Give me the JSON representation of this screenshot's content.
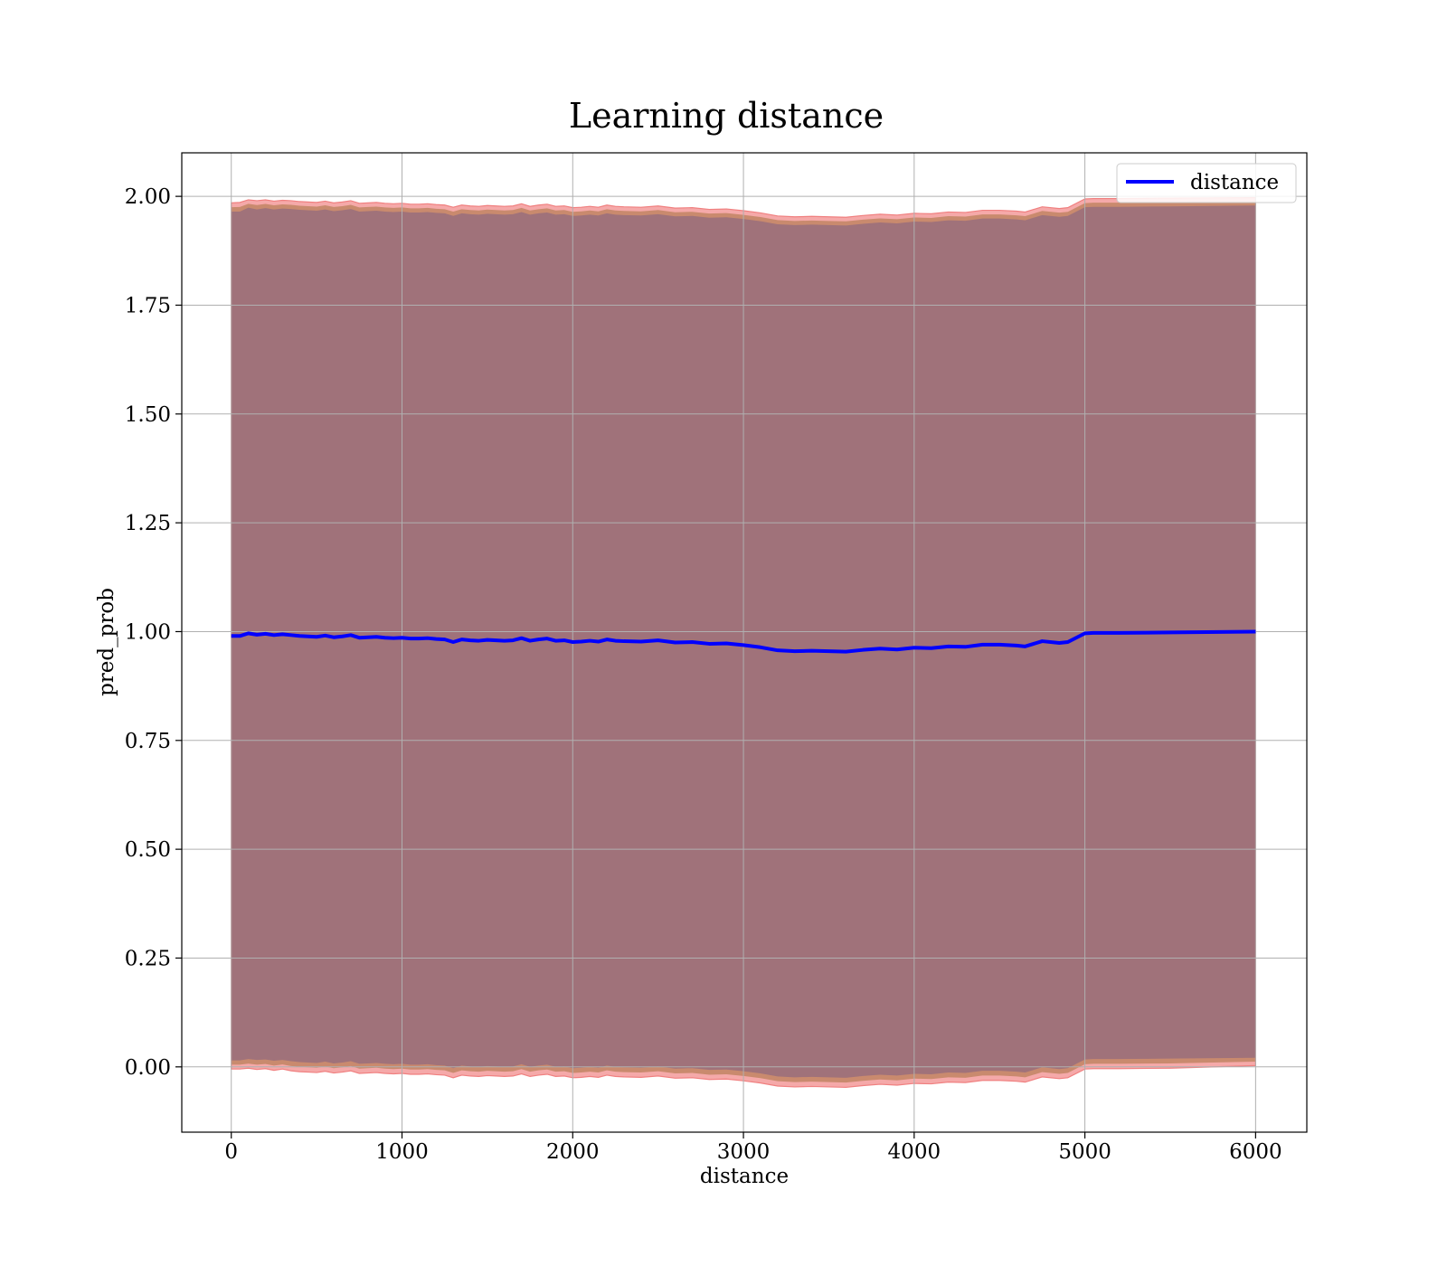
{
  "chart_data": {
    "type": "line",
    "title": "Learning distance",
    "xlabel": "distance",
    "ylabel": "pred_prob",
    "xlim": [
      -290,
      6300
    ],
    "ylim": [
      -0.15,
      2.1
    ],
    "xticks": [
      0,
      1000,
      2000,
      3000,
      4000,
      5000,
      6000
    ],
    "xtick_labels": [
      "0",
      "1000",
      "2000",
      "3000",
      "4000",
      "5000",
      "6000"
    ],
    "yticks": [
      0.0,
      0.25,
      0.5,
      0.75,
      1.0,
      1.25,
      1.5,
      1.75,
      2.0
    ],
    "ytick_labels": [
      "0.00",
      "0.25",
      "0.50",
      "0.75",
      "1.00",
      "1.25",
      "1.50",
      "1.75",
      "2.00"
    ],
    "grid": true,
    "legend": {
      "position": "top-right",
      "entries": [
        "distance"
      ]
    },
    "colors": {
      "line": "#0000ff",
      "band_outer": "#f4a0a0",
      "band_mid": "#c98a6e",
      "band_inner": "#a0727a"
    },
    "series": [
      {
        "name": "distance",
        "x": [
          0,
          50,
          100,
          150,
          200,
          250,
          300,
          350,
          400,
          450,
          500,
          550,
          600,
          650,
          700,
          750,
          800,
          850,
          900,
          950,
          1000,
          1050,
          1100,
          1150,
          1200,
          1250,
          1300,
          1350,
          1400,
          1450,
          1500,
          1550,
          1600,
          1650,
          1700,
          1750,
          1800,
          1850,
          1900,
          1950,
          2000,
          2050,
          2100,
          2150,
          2200,
          2250,
          2300,
          2400,
          2500,
          2600,
          2700,
          2800,
          2900,
          3000,
          3100,
          3200,
          3300,
          3400,
          3500,
          3600,
          3700,
          3800,
          3900,
          4000,
          4100,
          4200,
          4300,
          4400,
          4500,
          4600,
          4650,
          4750,
          4850,
          4900,
          5000,
          5050,
          5200,
          5500,
          6000
        ],
        "y": [
          0.99,
          0.99,
          0.996,
          0.993,
          0.995,
          0.992,
          0.994,
          0.992,
          0.99,
          0.989,
          0.988,
          0.991,
          0.987,
          0.989,
          0.992,
          0.986,
          0.987,
          0.988,
          0.986,
          0.985,
          0.986,
          0.984,
          0.984,
          0.985,
          0.983,
          0.982,
          0.976,
          0.982,
          0.98,
          0.979,
          0.981,
          0.98,
          0.979,
          0.98,
          0.985,
          0.979,
          0.982,
          0.984,
          0.979,
          0.98,
          0.976,
          0.977,
          0.979,
          0.977,
          0.982,
          0.979,
          0.978,
          0.977,
          0.98,
          0.975,
          0.976,
          0.972,
          0.973,
          0.969,
          0.964,
          0.957,
          0.955,
          0.956,
          0.955,
          0.954,
          0.958,
          0.961,
          0.959,
          0.963,
          0.962,
          0.966,
          0.965,
          0.97,
          0.97,
          0.968,
          0.966,
          0.978,
          0.974,
          0.976,
          0.996,
          0.997,
          0.997,
          0.998,
          1.0
        ],
        "band_inner_lower": [
          0.015,
          0.015,
          0.018,
          0.016,
          0.017,
          0.014,
          0.016,
          0.013,
          0.011,
          0.01,
          0.009,
          0.012,
          0.008,
          0.01,
          0.013,
          0.007,
          0.008,
          0.009,
          0.007,
          0.006,
          0.007,
          0.005,
          0.005,
          0.006,
          0.004,
          0.003,
          -0.003,
          0.003,
          0.001,
          0.0,
          0.002,
          0.001,
          0.0,
          0.001,
          0.006,
          0.0,
          0.003,
          0.005,
          0.0,
          0.001,
          -0.003,
          -0.002,
          0.0,
          -0.002,
          0.003,
          0.0,
          -0.001,
          -0.002,
          0.001,
          -0.004,
          -0.003,
          -0.007,
          -0.006,
          -0.01,
          -0.015,
          -0.022,
          -0.024,
          -0.023,
          -0.024,
          -0.025,
          -0.021,
          -0.018,
          -0.02,
          -0.016,
          -0.017,
          -0.013,
          -0.014,
          -0.009,
          -0.009,
          -0.011,
          -0.013,
          -0.001,
          -0.005,
          -0.003,
          0.017,
          0.018,
          0.018,
          0.019,
          0.021
        ],
        "band_inner_upper": [
          1.965,
          1.965,
          1.974,
          1.97,
          1.973,
          1.97,
          1.972,
          1.971,
          1.969,
          1.968,
          1.967,
          1.97,
          1.966,
          1.968,
          1.971,
          1.965,
          1.966,
          1.967,
          1.965,
          1.964,
          1.965,
          1.963,
          1.963,
          1.964,
          1.962,
          1.961,
          1.955,
          1.961,
          1.959,
          1.958,
          1.96,
          1.959,
          1.958,
          1.959,
          1.964,
          1.958,
          1.961,
          1.963,
          1.958,
          1.959,
          1.955,
          1.956,
          1.958,
          1.956,
          1.961,
          1.958,
          1.957,
          1.956,
          1.959,
          1.954,
          1.955,
          1.951,
          1.952,
          1.948,
          1.943,
          1.936,
          1.934,
          1.935,
          1.934,
          1.933,
          1.937,
          1.94,
          1.938,
          1.942,
          1.941,
          1.945,
          1.944,
          1.949,
          1.949,
          1.947,
          1.945,
          1.957,
          1.953,
          1.955,
          1.975,
          1.976,
          1.976,
          1.977,
          1.979
        ],
        "band_outer_lower": [
          -0.005,
          -0.005,
          -0.003,
          -0.006,
          -0.004,
          -0.008,
          -0.005,
          -0.009,
          -0.011,
          -0.012,
          -0.013,
          -0.01,
          -0.014,
          -0.012,
          -0.009,
          -0.015,
          -0.014,
          -0.013,
          -0.015,
          -0.016,
          -0.015,
          -0.017,
          -0.017,
          -0.016,
          -0.018,
          -0.019,
          -0.025,
          -0.019,
          -0.021,
          -0.022,
          -0.02,
          -0.021,
          -0.022,
          -0.021,
          -0.016,
          -0.022,
          -0.019,
          -0.017,
          -0.022,
          -0.021,
          -0.025,
          -0.024,
          -0.022,
          -0.024,
          -0.019,
          -0.022,
          -0.023,
          -0.024,
          -0.021,
          -0.026,
          -0.025,
          -0.029,
          -0.028,
          -0.032,
          -0.037,
          -0.044,
          -0.046,
          -0.045,
          -0.046,
          -0.047,
          -0.043,
          -0.04,
          -0.042,
          -0.038,
          -0.039,
          -0.035,
          -0.036,
          -0.031,
          -0.031,
          -0.033,
          -0.035,
          -0.023,
          -0.027,
          -0.025,
          -0.005,
          -0.004,
          -0.004,
          -0.003,
          0.003
        ],
        "band_outer_upper": [
          1.985,
          1.986,
          1.992,
          1.99,
          1.992,
          1.989,
          1.991,
          1.99,
          1.988,
          1.987,
          1.986,
          1.989,
          1.985,
          1.987,
          1.99,
          1.984,
          1.985,
          1.986,
          1.984,
          1.983,
          1.984,
          1.982,
          1.982,
          1.983,
          1.981,
          1.98,
          1.975,
          1.98,
          1.978,
          1.977,
          1.979,
          1.978,
          1.977,
          1.978,
          1.983,
          1.977,
          1.98,
          1.982,
          1.977,
          1.978,
          1.974,
          1.975,
          1.977,
          1.975,
          1.98,
          1.977,
          1.976,
          1.975,
          1.978,
          1.973,
          1.974,
          1.97,
          1.971,
          1.967,
          1.962,
          1.955,
          1.953,
          1.954,
          1.953,
          1.952,
          1.956,
          1.959,
          1.957,
          1.961,
          1.96,
          1.964,
          1.963,
          1.968,
          1.968,
          1.966,
          1.964,
          1.976,
          1.972,
          1.974,
          1.994,
          1.995,
          1.995,
          1.996,
          1.997
        ]
      }
    ]
  }
}
